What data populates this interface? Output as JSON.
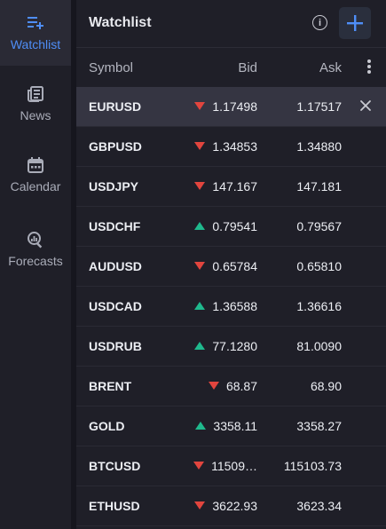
{
  "nav": {
    "items": [
      {
        "label": "Watchlist",
        "icon": "watchlist-add-icon",
        "active": true
      },
      {
        "label": "News",
        "icon": "news-icon",
        "active": false
      },
      {
        "label": "Calendar",
        "icon": "calendar-icon",
        "active": false
      },
      {
        "label": "Forecasts",
        "icon": "forecasts-icon",
        "active": false
      }
    ]
  },
  "watchlist": {
    "title": "Watchlist",
    "info_icon": "i",
    "columns": {
      "symbol": "Symbol",
      "bid": "Bid",
      "ask": "Ask"
    },
    "rows": [
      {
        "symbol": "EURUSD",
        "trend": "down",
        "bid": "1.17498",
        "ask": "1.17517",
        "selected": true
      },
      {
        "symbol": "GBPUSD",
        "trend": "down",
        "bid": "1.34853",
        "ask": "1.34880"
      },
      {
        "symbol": "USDJPY",
        "trend": "down",
        "bid": "147.167",
        "ask": "147.181"
      },
      {
        "symbol": "USDCHF",
        "trend": "up",
        "bid": "0.79541",
        "ask": "0.79567"
      },
      {
        "symbol": "AUDUSD",
        "trend": "down",
        "bid": "0.65784",
        "ask": "0.65810"
      },
      {
        "symbol": "USDCAD",
        "trend": "up",
        "bid": "1.36588",
        "ask": "1.36616"
      },
      {
        "symbol": "USDRUB",
        "trend": "up",
        "bid": "77.1280",
        "ask": "81.0090"
      },
      {
        "symbol": "BRENT",
        "trend": "down",
        "bid": "68.87",
        "ask": "68.90"
      },
      {
        "symbol": "GOLD",
        "trend": "up",
        "bid": "3358.11",
        "ask": "3358.27"
      },
      {
        "symbol": "BTCUSD",
        "trend": "down",
        "bid": "11509…",
        "ask": "115103.73"
      },
      {
        "symbol": "ETHUSD",
        "trend": "down",
        "bid": "3622.93",
        "ask": "3623.34"
      }
    ]
  },
  "colors": {
    "accent": "#4f8ef7",
    "down": "#e2453e",
    "up": "#1fb98d",
    "background": "#16161e",
    "panel": "#1f1f28"
  }
}
